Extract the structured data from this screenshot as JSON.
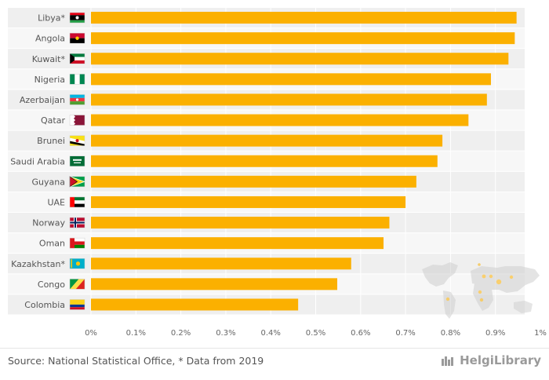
{
  "chart_data": {
    "type": "bar",
    "orientation": "horizontal",
    "categories": [
      "Libya*",
      "Angola",
      "Kuwait*",
      "Nigeria",
      "Azerbaijan",
      "Qatar",
      "Brunei",
      "Saudi Arabia",
      "Guyana",
      "UAE",
      "Norway",
      "Oman",
      "Kazakhstan*",
      "Congo",
      "Colombia"
    ],
    "values": [
      0.947,
      0.943,
      0.929,
      0.89,
      0.881,
      0.84,
      0.782,
      0.771,
      0.724,
      0.7,
      0.664,
      0.651,
      0.579,
      0.548,
      0.461
    ],
    "unit": "%",
    "xlim": [
      0,
      1
    ],
    "x_ticks": [
      "0%",
      "0.1%",
      "0.2%",
      "0.3%",
      "0.4%",
      "0.5%",
      "0.6%",
      "0.7%",
      "0.8%",
      "0.9%",
      "1%"
    ],
    "bar_color": "#fbb000",
    "title": "",
    "xlabel": "",
    "ylabel": "",
    "grid": true,
    "legend": "none",
    "flag_icons": [
      "libya-flag-icon",
      "angola-flag-icon",
      "kuwait-flag-icon",
      "nigeria-flag-icon",
      "azerbaijan-flag-icon",
      "qatar-flag-icon",
      "brunei-flag-icon",
      "saudi-arabia-flag-icon",
      "guyana-flag-icon",
      "uae-flag-icon",
      "norway-flag-icon",
      "oman-flag-icon",
      "kazakhstan-flag-icon",
      "congo-flag-icon",
      "colombia-flag-icon"
    ]
  },
  "footer": {
    "source": "Source: National Statistical Office, * Data from 2019",
    "logo_text": "HelgiLibrary"
  }
}
